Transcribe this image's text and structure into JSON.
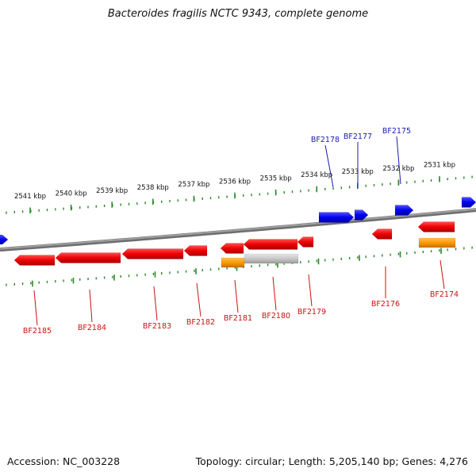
{
  "title": "Bacteroides fragilis NCTC 9343, complete genome",
  "footer": {
    "accession": "Accession: NC_003228",
    "summary": "Topology: circular; Length: 5,205,140 bp; Genes: 4,276"
  },
  "colors": {
    "forward_gene": "#0000ee",
    "reverse_gene": "#ee0000",
    "forward_label": "#1a1ab0",
    "reverse_label": "#cc1010",
    "backbone": "#888888",
    "ticks": "#2a8a2a",
    "orange_feature": "#ff9900",
    "grey_feature": "#c8c8c8"
  },
  "kbp_labels": [
    "2541 kbp",
    "2540 kbp",
    "2539 kbp",
    "2538 kbp",
    "2537 kbp",
    "2536 kbp",
    "2535 kbp",
    "2534 kbp",
    "2533 kbp",
    "2532 kbp",
    "2531 kbp"
  ],
  "forward_genes": [
    "BF2178",
    "BF2177",
    "BF2175"
  ],
  "reverse_genes": [
    "BF2185",
    "BF2184",
    "BF2183",
    "BF2182",
    "BF2181",
    "BF2180",
    "BF2179",
    "BF2176",
    "BF2174"
  ]
}
